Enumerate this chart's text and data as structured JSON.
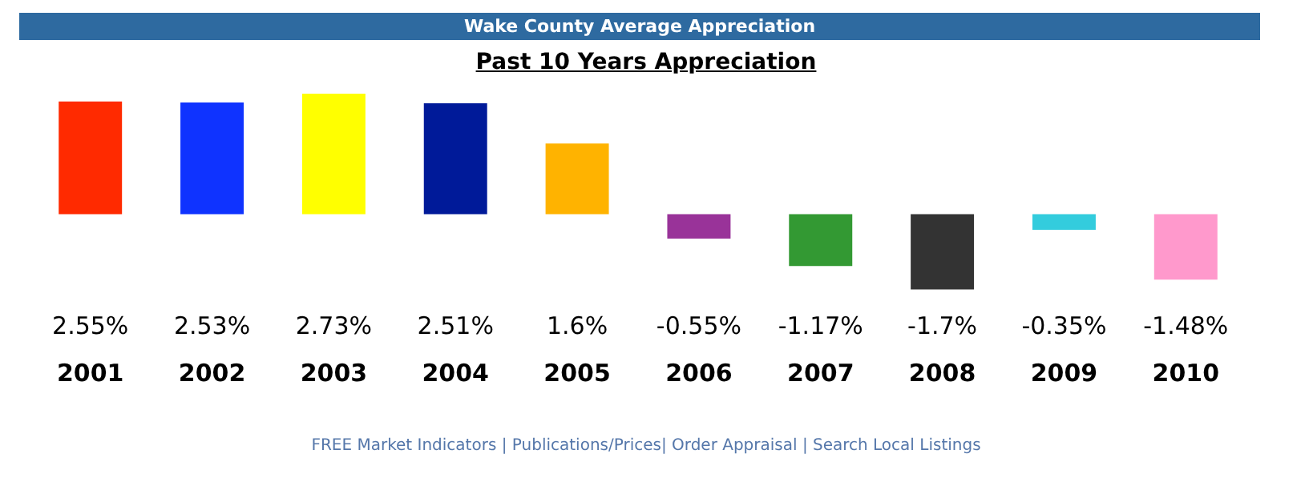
{
  "chart_data": {
    "type": "bar",
    "title": "Wake County Average Appreciation",
    "subtitle": "Past 10 Years Appreciation",
    "categories": [
      "2001",
      "2002",
      "2003",
      "2004",
      "2005",
      "2006",
      "2007",
      "2008",
      "2009",
      "2010"
    ],
    "values": [
      2.55,
      2.53,
      2.73,
      2.51,
      1.6,
      -0.55,
      -1.17,
      -1.7,
      -0.35,
      -1.48
    ],
    "value_labels": [
      "2.55%",
      "2.53%",
      "2.73%",
      "2.51%",
      "1.6%",
      "-0.55%",
      "-1.17%",
      "-1.7%",
      "-0.35%",
      "-1.48%"
    ],
    "colors": [
      "#ff2a00",
      "#0f33ff",
      "#ffff00",
      "#001a99",
      "#ffb300",
      "#993399",
      "#339933",
      "#333333",
      "#33ccdd",
      "#ff99cc"
    ],
    "annotations": [
      "FREE Market Indicators | Publications/Prices| Order Appraisal | Search Local Listings"
    ],
    "grid": false,
    "legend": false
  }
}
